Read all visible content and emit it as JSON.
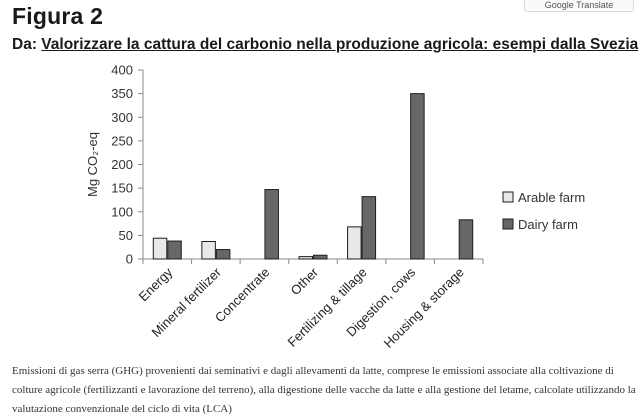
{
  "figure_label": "Figura 2",
  "translate_badge": "Google Translate",
  "subtitle": {
    "prefix": "Da: ",
    "main": "Valorizzare la cattura del carbonio nella produzione agricola: esempi dalla Svezia"
  },
  "chart_data": {
    "type": "bar",
    "ylabel": "Mg CO₂-eq",
    "ylim": [
      0,
      400
    ],
    "yticks": [
      "0",
      "50",
      "100",
      "150",
      "200",
      "250",
      "300",
      "350",
      "400"
    ],
    "categories": [
      "Energy",
      "Mineral fertilizer",
      "Concentrate",
      "Other",
      "Fertilizing & tillage",
      "Digestion, cows",
      "Housing & storage"
    ],
    "series": [
      {
        "name": "Arable farm",
        "color": "#e8e8e8",
        "values": [
          44,
          37,
          0,
          5,
          68,
          0,
          0
        ]
      },
      {
        "name": "Dairy farm",
        "color": "#676767",
        "values": [
          38,
          20,
          147,
          8,
          132,
          350,
          83
        ]
      }
    ],
    "legend": "right",
    "grid": false
  },
  "caption": "Emissioni di gas serra (GHG) provenienti dai seminativi e dagli allevamenti da latte, comprese le emissioni associate alla coltivazione di colture agricole (fertilizzanti e lavorazione del terreno), alla digestione delle vacche da latte e alla gestione del letame, calcolate utilizzando la valutazione convenzionale del ciclo di vita (LCA)"
}
